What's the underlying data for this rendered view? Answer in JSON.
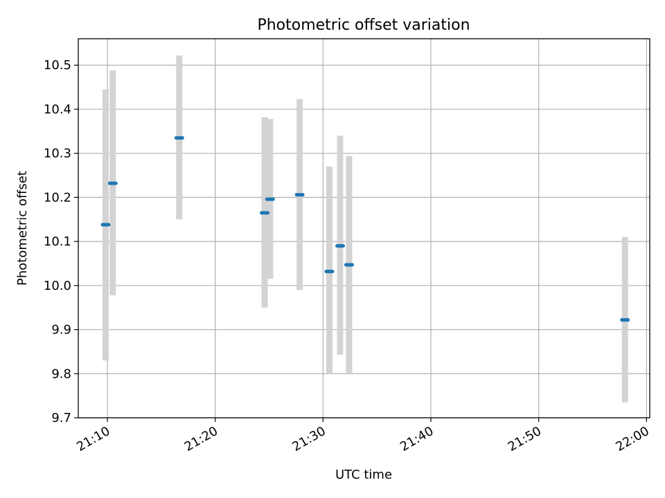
{
  "chart_data": {
    "type": "scatter",
    "title": "Photometric offset variation",
    "xlabel": "UTC time",
    "ylabel": "Photometric offset",
    "x_ticks": [
      "21:10",
      "21:20",
      "21:30",
      "21:40",
      "21:50",
      "22:00"
    ],
    "x_tick_minutes": [
      10,
      20,
      30,
      40,
      50,
      60
    ],
    "xlim_minutes": [
      7.3,
      60.3
    ],
    "y_ticks": [
      "9.7",
      "9.8",
      "9.9",
      "10.0",
      "10.1",
      "10.2",
      "10.3",
      "10.4",
      "10.5"
    ],
    "ylim": [
      9.7,
      10.56
    ],
    "grid": true,
    "marker_color": "#1f77b4",
    "errorbar_color": "#d3d3d3",
    "points": [
      {
        "time": "21:09:50",
        "y": 10.138,
        "y_low": 9.83,
        "y_high": 10.445
      },
      {
        "time": "21:10:30",
        "y": 10.232,
        "y_low": 9.978,
        "y_high": 10.488
      },
      {
        "time": "21:16:40",
        "y": 10.335,
        "y_low": 10.15,
        "y_high": 10.522
      },
      {
        "time": "21:24:35",
        "y": 10.165,
        "y_low": 9.95,
        "y_high": 10.382
      },
      {
        "time": "21:25:05",
        "y": 10.196,
        "y_low": 10.015,
        "y_high": 10.378
      },
      {
        "time": "21:27:50",
        "y": 10.206,
        "y_low": 9.99,
        "y_high": 10.423
      },
      {
        "time": "21:30:35",
        "y": 10.032,
        "y_low": 9.8,
        "y_high": 10.27
      },
      {
        "time": "21:31:35",
        "y": 10.09,
        "y_low": 9.843,
        "y_high": 10.34
      },
      {
        "time": "21:32:25",
        "y": 10.047,
        "y_low": 9.8,
        "y_high": 10.294
      },
      {
        "time": "21:58:00",
        "y": 9.922,
        "y_low": 9.735,
        "y_high": 10.11
      }
    ]
  }
}
